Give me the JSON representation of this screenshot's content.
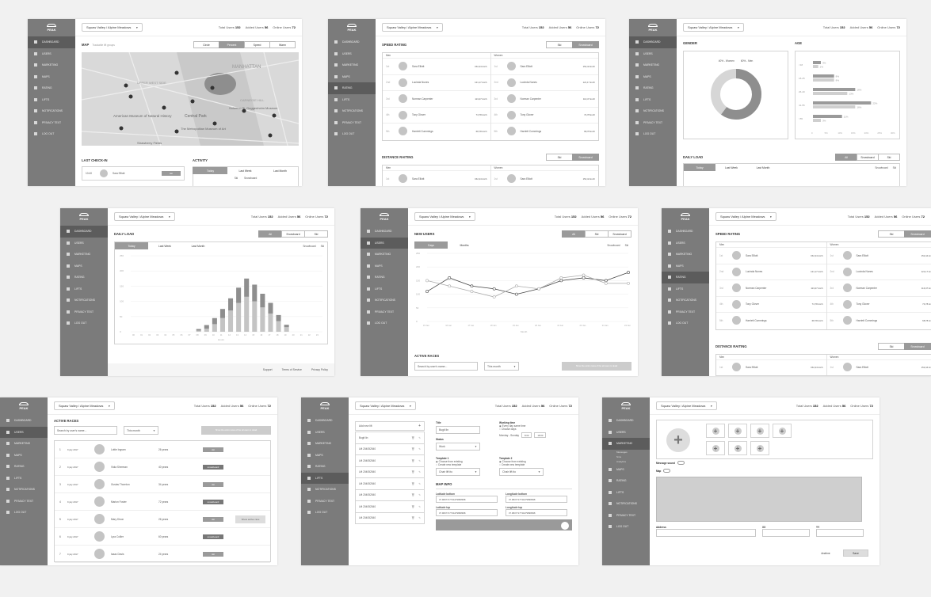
{
  "sidebar": {
    "logo": "PEAK",
    "items": [
      "DASHBOARD",
      "USERS",
      "MARKETING",
      "MAPS",
      "RATING",
      "LIFTS",
      "NOTIFICATIONS",
      "PRIVACY TEXT",
      "LOG OUT"
    ],
    "marketing_sub": [
      "Messages",
      "Sms",
      "Analytics"
    ]
  },
  "topbar": {
    "resort": "Squaw Valley / Alpine Meadows",
    "total_users_label": "Total Users",
    "total_users": "152",
    "added_users_label": "Added Users",
    "added_users": "56",
    "online_users_label": "Online Users",
    "online_users": "72"
  },
  "map_panel": {
    "title": "MAP",
    "subtitle": "Trackable lift groups",
    "tabs": [
      "Circle",
      "Percent",
      "Speed",
      "Warm"
    ],
    "labels": [
      "MANHATTAN",
      "UPPER WEST SIDE",
      "CARNEGIE HILL",
      "Central Park",
      "American Museum of Natural History",
      "Solomon R. Guggenheim Museum",
      "The Metropolitan Museum of Art",
      "Strawberry Fields"
    ],
    "last_checkin": "LAST CHECK-IN",
    "activity": "ACTIVITY",
    "checkin_time": "10:40",
    "checkin_name": "Sara Elliott",
    "checkin_btn": "ski",
    "activity_tabs": [
      "Today",
      "Last Week",
      "Last Month"
    ],
    "legend": [
      "Ski",
      "Snowboard"
    ]
  },
  "rating": {
    "speed_title": "SPEED RATING",
    "distance_title": "DISTANCE RAITING",
    "toggle": [
      "Ski",
      "Snowboard"
    ],
    "men_label": "Men",
    "women_label": "Women",
    "rows": [
      {
        "rank": "1st",
        "name": "Sara Elliott",
        "value": "152,44 km/h"
      },
      {
        "rank": "2nd",
        "name": "Lucinda Nunes",
        "value": "121,17 km/h"
      },
      {
        "rank": "3rd",
        "name": "Norman Carpenter",
        "value": "113,47 km/h"
      },
      {
        "rank": "4th",
        "name": "Tony Glover",
        "value": "74,78 km/h"
      },
      {
        "rank": "5th",
        "name": "Harriett Cummings",
        "value": "68,78 km/h"
      }
    ]
  },
  "demographics": {
    "gender_title": "GENDER",
    "age_title": "AGE",
    "gender_legend": [
      "40% - Women",
      "60% - Men"
    ],
    "age_groups": [
      "<18",
      "18-25",
      "26-40",
      "41-55",
      ">55"
    ],
    "age_values": [
      [
        "3%",
        "2%"
      ],
      [
        "8%",
        "8%"
      ],
      [
        "16%",
        "13%"
      ],
      [
        "22%",
        "16%"
      ],
      [
        "11%",
        "3%"
      ]
    ],
    "age_axis": [
      "0",
      "5%",
      "10%",
      "15%",
      "20%",
      "25%",
      "30%"
    ],
    "daily_load": "DAILY LOAD",
    "load_toggle": [
      "All",
      "Snowboard",
      "Ski"
    ],
    "load_tabs": [
      "Today",
      "Last Week",
      "Last Month"
    ],
    "load_legend": [
      "Snowboard",
      "Ski"
    ]
  },
  "daily_load_chart": {
    "title": "DAILY LOAD",
    "toggle": [
      "All",
      "Snowboard",
      "Ski"
    ],
    "tabs": [
      "Today",
      "Last Week",
      "Last Month"
    ],
    "legend": [
      "Snowboard",
      "Ski"
    ],
    "y_ticks": [
      "0",
      "50",
      "100",
      "150",
      "200",
      "250"
    ],
    "x_label": "Hours",
    "footer": [
      "Support",
      "Terms of Service",
      "Privacy Policy"
    ]
  },
  "chart_data": [
    {
      "type": "bar",
      "title": "DAILY LOAD",
      "xlabel": "Hours",
      "categories": [
        "00",
        "01",
        "02",
        "03",
        "04",
        "05",
        "06",
        "07",
        "08",
        "09",
        "10",
        "11",
        "12",
        "13",
        "14",
        "15",
        "16",
        "17",
        "18",
        "19",
        "20",
        "21",
        "22",
        "23"
      ],
      "series": [
        {
          "name": "Snowboard",
          "values": [
            0,
            0,
            0,
            0,
            0,
            0,
            0,
            0,
            4,
            10,
            25,
            45,
            70,
            95,
            115,
            100,
            80,
            60,
            35,
            15,
            0,
            0,
            0,
            0
          ]
        },
        {
          "name": "Ski",
          "values": [
            0,
            0,
            0,
            0,
            0,
            0,
            0,
            0,
            5,
            12,
            20,
            30,
            40,
            50,
            60,
            55,
            45,
            35,
            20,
            8,
            0,
            0,
            0,
            0
          ]
        }
      ],
      "ylim": [
        0,
        250
      ]
    },
    {
      "type": "line",
      "title": "NEW USERS",
      "xlabel": "Month",
      "x": [
        "15 Jan",
        "16 Jan",
        "17 Jan",
        "18 Jan",
        "19 Jan",
        "20 Jan",
        "21 Jan",
        "22 Jan",
        "23 Jan",
        "24 Jan"
      ],
      "series": [
        {
          "name": "Snowboard",
          "values": [
            110,
            160,
            130,
            120,
            100,
            120,
            150,
            160,
            150,
            180
          ]
        },
        {
          "name": "Ski",
          "values": [
            150,
            130,
            110,
            90,
            130,
            120,
            160,
            170,
            140,
            140
          ]
        }
      ],
      "ylim": [
        0,
        250
      ]
    }
  ],
  "new_users": {
    "title": "NEW USERS",
    "toggle": [
      "All",
      "Ski",
      "Snowboard"
    ],
    "tabs": [
      "Days",
      "Months"
    ],
    "legend": [
      "Snowboard",
      "Ski"
    ],
    "y_ticks": [
      "0",
      "50",
      "100",
      "150",
      "200",
      "250"
    ],
    "x_label": "Month",
    "active_races": "ACTIVE RACES",
    "search_placeholder": "Search by user's name...",
    "period": "This month",
    "show_btn": "Show the entire races of the all users in detail"
  },
  "races": {
    "title": "ACTIVE RACES",
    "search_placeholder": "Search by user's name...",
    "period": "This month",
    "show_btn": "Show the entire races of the all users in detail",
    "action_btn": "Show active race",
    "rows": [
      {
        "n": "1",
        "date": "9 july 2017",
        "name": "Lottie Ingram",
        "age": "26 years",
        "type": "ski"
      },
      {
        "n": "2",
        "date": "9 july 2017",
        "name": "Viola Sherman",
        "age": "40 years",
        "type": "snowboard"
      },
      {
        "n": "3",
        "date": "9 july 2017",
        "name": "Gustav Thornton",
        "age": "34 years",
        "type": "ski"
      },
      {
        "n": "4",
        "date": "9 july 2017",
        "name": "Marion Foster",
        "age": "72 years",
        "type": "snowboard"
      },
      {
        "n": "5",
        "date": "9 july 2017",
        "name": "Mary Dixon",
        "age": "26 years",
        "type": "ski"
      },
      {
        "n": "6",
        "date": "9 july 2017",
        "name": "Lyra Collier",
        "age": "60 years",
        "type": "snowboard"
      },
      {
        "n": "7",
        "date": "9 july 2017",
        "name": "Isaac Davis",
        "age": "24 years",
        "type": "ski"
      }
    ]
  },
  "lifts": {
    "add_label": "Add new lift",
    "items": [
      "Bugit lin",
      "Lift 204052540",
      "Lift 204052540",
      "Lift 204052540",
      "Lift 204052540",
      "Lift 204052540",
      "Lift 204052540",
      "Lift 204052540"
    ],
    "title_label": "Title",
    "title_value": "Bugit lin",
    "status_label": "Status",
    "status_value": "Work",
    "working_time": "Working time",
    "every_day": "Every day same time",
    "choose_days": "Choose days",
    "weekday": "Monday - Sunday",
    "time_from": "8:00",
    "time_to": "18:00",
    "template1": "Template 1",
    "template2": "Template 2",
    "choose_existing": "Choose from existing",
    "create_template": "Create new template",
    "template_value": "Chair lift ito",
    "map_info": "MAP INFO",
    "lat_bottom": "Latitude bottom",
    "lng_bottom": "Longitude bottom",
    "lat_top": "Latitude top",
    "lng_top": "Longitude top",
    "coord": "37.9847717734479898998"
  },
  "marketing": {
    "message_sound": "Message sound",
    "map": "Map",
    "address": "Address",
    "xx": "XX",
    "yy": "YY",
    "archive": "Archive",
    "save": "Save"
  }
}
